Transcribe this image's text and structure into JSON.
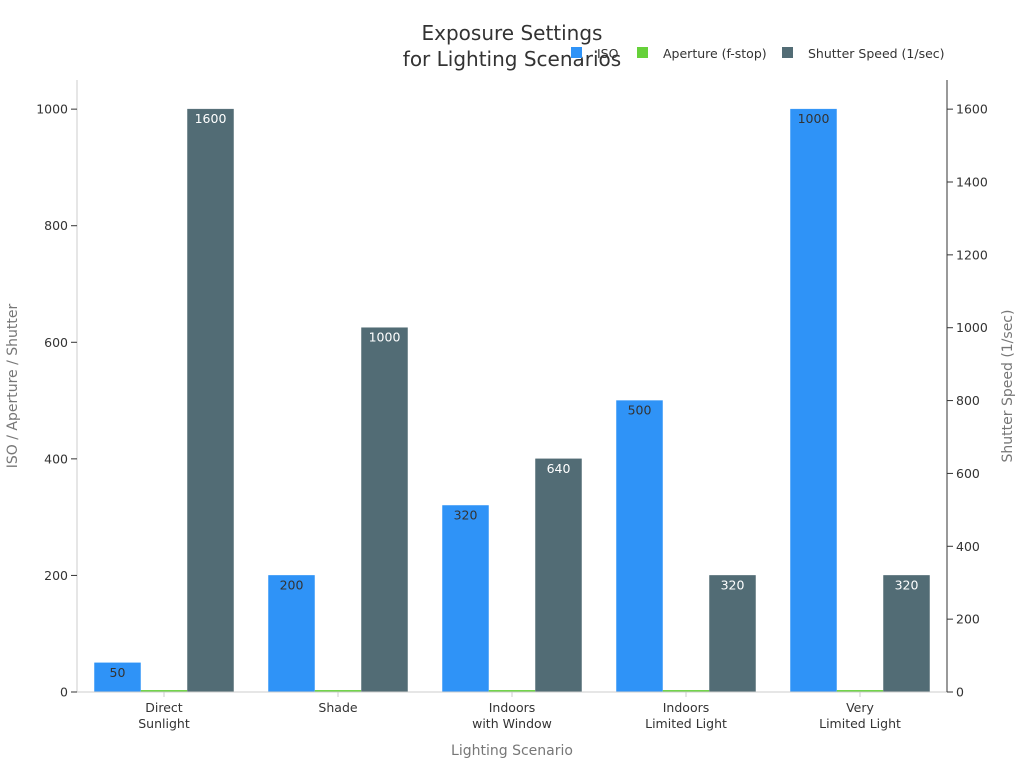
{
  "chart_data": {
    "type": "bar",
    "title": [
      "Exposure Settings",
      "for Lighting Scenarios"
    ],
    "xlabel": "Lighting Scenario",
    "ylabel": "ISO / Aperture / Shutter",
    "y2label": "Shutter Speed (1/sec)",
    "categories": [
      [
        "Direct",
        "Sunlight"
      ],
      [
        "Shade"
      ],
      [
        "Indoors",
        "with Window"
      ],
      [
        "Indoors",
        "Limited Light"
      ],
      [
        "Very",
        "Limited Light"
      ]
    ],
    "ylim": [
      0,
      1050
    ],
    "y2lim": [
      0,
      1680
    ],
    "yticks": [
      0,
      200,
      400,
      600,
      800,
      1000
    ],
    "y2ticks": [
      0,
      200,
      400,
      600,
      800,
      1000,
      1200,
      1400,
      1600
    ],
    "legend_position": "top-right",
    "grid": false,
    "series": [
      {
        "name": "ISO",
        "axis": "left",
        "values": [
          50,
          200,
          320,
          500,
          1000
        ],
        "labels": [
          "50",
          "200",
          "320",
          "500",
          "1000"
        ],
        "color": "#2f93f7",
        "label_color": "#333333"
      },
      {
        "name": "Aperture (f-stop)",
        "axis": "left",
        "values": [
          2.8,
          2.8,
          2.8,
          2.8,
          2.8
        ],
        "labels": [
          "",
          "",
          "",
          "",
          ""
        ],
        "color": "#66d13a",
        "label_color": "#333333"
      },
      {
        "name": "Shutter Speed (1/sec)",
        "axis": "right",
        "values": [
          1600,
          1000,
          640,
          320,
          320
        ],
        "labels": [
          "1600",
          "1000",
          "640",
          "320",
          "320"
        ],
        "color": "#526c75",
        "label_color": "#ffffff"
      }
    ]
  }
}
